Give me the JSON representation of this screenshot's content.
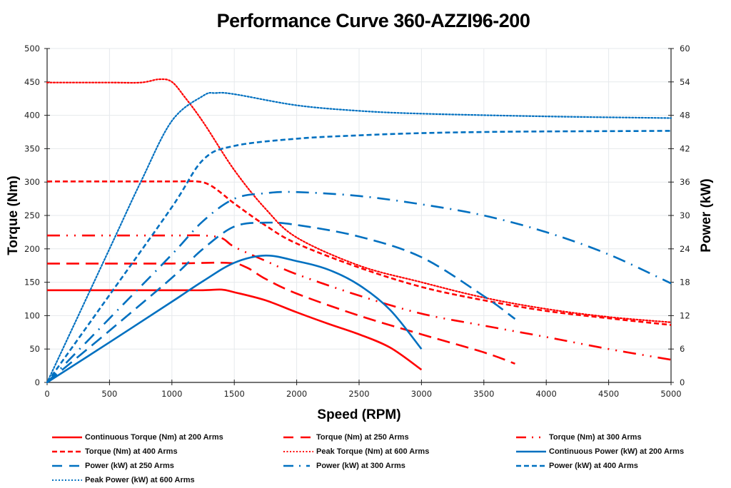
{
  "chart_data": {
    "type": "line",
    "title": "Performance Curve 360-AZZI96-200",
    "xlabel": "Speed (RPM)",
    "ylabel": "Torque (Nm)",
    "y2label": "Power (kW)",
    "xlim": [
      0,
      5000
    ],
    "ylim": [
      0,
      500
    ],
    "y2lim": [
      0,
      60
    ],
    "x_ticks": [
      "0",
      "500",
      "1000",
      "1500",
      "2000",
      "2500",
      "3000",
      "3500",
      "4000",
      "4500",
      "5000"
    ],
    "y_ticks": [
      "0",
      "50",
      "100",
      "150",
      "200",
      "250",
      "300",
      "350",
      "400",
      "450",
      "500"
    ],
    "y2_ticks": [
      "0",
      "6",
      "12",
      "18",
      "24",
      "30",
      "36",
      "42",
      "48",
      "54",
      "60"
    ],
    "grid": true,
    "legend_position": "bottom",
    "colors": {
      "torque": "#ff0000",
      "power": "#0070c0"
    },
    "series": [
      {
        "name": "Continuous Torque (Nm) at 200 Arms",
        "axis": "left",
        "color": "#ff0000",
        "style": "solid",
        "x": [
          0,
          500,
          1000,
          1250,
          1400,
          1500,
          1750,
          2000,
          2250,
          2500,
          2750,
          3000
        ],
        "y": [
          138,
          138,
          138,
          138,
          139,
          135,
          123,
          105,
          88,
          72,
          52,
          19
        ]
      },
      {
        "name": "Torque (Nm) at 250 Arms",
        "axis": "left",
        "color": "#ff0000",
        "style": "longdash",
        "x": [
          0,
          500,
          1000,
          1450,
          1600,
          1750,
          2000,
          2500,
          3000,
          3500,
          3750
        ],
        "y": [
          178,
          178,
          178,
          179,
          172,
          155,
          133,
          100,
          72,
          45,
          28
        ]
      },
      {
        "name": "Torque (Nm) at 300 Arms",
        "axis": "left",
        "color": "#ff0000",
        "style": "longdashdotdot",
        "x": [
          0,
          500,
          1000,
          1250,
          1400,
          1500,
          1750,
          2000,
          2500,
          3000,
          3500,
          4000,
          4500,
          5000
        ],
        "y": [
          220,
          220,
          220,
          220,
          216,
          203,
          182,
          162,
          130,
          103,
          85,
          68,
          50,
          34
        ]
      },
      {
        "name": "Torque (Nm) at 400 Arms",
        "axis": "left",
        "color": "#ff0000",
        "style": "dash",
        "x": [
          0,
          500,
          1000,
          1200,
          1300,
          1400,
          1500,
          1750,
          2000,
          2500,
          3000,
          3500,
          4000,
          4500,
          5000
        ],
        "y": [
          301,
          301,
          301,
          301,
          296,
          283,
          268,
          235,
          208,
          172,
          143,
          123,
          107,
          96,
          86
        ]
      },
      {
        "name": "Peak Torque (Nm) at 600 Arms",
        "axis": "left",
        "color": "#ff0000",
        "style": "dot",
        "x": [
          0,
          500,
          750,
          900,
          1000,
          1100,
          1250,
          1500,
          1750,
          2000,
          2500,
          3000,
          3500,
          4000,
          4500,
          5000
        ],
        "y": [
          449,
          449,
          449,
          454,
          450,
          428,
          390,
          318,
          260,
          217,
          175,
          150,
          127,
          110,
          98,
          90
        ]
      },
      {
        "name": "Continuous Power (kW) at 200 Arms",
        "axis": "right",
        "color": "#0070c0",
        "style": "solid",
        "x": [
          0,
          500,
          1000,
          1250,
          1500,
          1750,
          2000,
          2250,
          2500,
          2750,
          3000
        ],
        "y": [
          0,
          7.2,
          14.5,
          18.2,
          21.5,
          22.8,
          21.8,
          20.3,
          17.5,
          13.0,
          6.0
        ]
      },
      {
        "name": "Power (kW) at 250 Arms",
        "axis": "right",
        "color": "#0070c0",
        "style": "longdash",
        "x": [
          0,
          500,
          1000,
          1250,
          1500,
          1750,
          2000,
          2500,
          3000,
          3500,
          3750
        ],
        "y": [
          0,
          9.3,
          18.8,
          24.0,
          28.0,
          28.7,
          28.3,
          26.2,
          22.5,
          15.5,
          11.4
        ]
      },
      {
        "name": "Power (kW) at 300 Arms",
        "axis": "right",
        "color": "#0070c0",
        "style": "longdashdot",
        "x": [
          0,
          500,
          1000,
          1250,
          1500,
          1750,
          2000,
          2500,
          3000,
          3500,
          4000,
          4500,
          5000
        ],
        "y": [
          0,
          11.5,
          23.0,
          29.0,
          33.0,
          34.0,
          34.2,
          33.5,
          32.0,
          30.0,
          27.0,
          23.0,
          17.8
        ]
      },
      {
        "name": "Power (kW) at 400 Arms",
        "axis": "right",
        "color": "#0070c0",
        "style": "dash",
        "x": [
          0,
          500,
          1000,
          1250,
          1500,
          2000,
          2500,
          3000,
          3500,
          4000,
          5000
        ],
        "y": [
          0,
          15.7,
          31.5,
          40.0,
          42.5,
          43.8,
          44.4,
          44.8,
          45.0,
          45.1,
          45.2
        ]
      },
      {
        "name": "Peak Power (kW) at 600 Arms",
        "axis": "right",
        "color": "#0070c0",
        "style": "dot",
        "x": [
          0,
          500,
          750,
          1000,
          1250,
          1350,
          1500,
          2000,
          2500,
          3000,
          4000,
          5000
        ],
        "y": [
          0,
          24.0,
          36.0,
          47.0,
          51.5,
          52.0,
          51.8,
          49.8,
          48.8,
          48.3,
          47.8,
          47.5
        ]
      }
    ]
  }
}
